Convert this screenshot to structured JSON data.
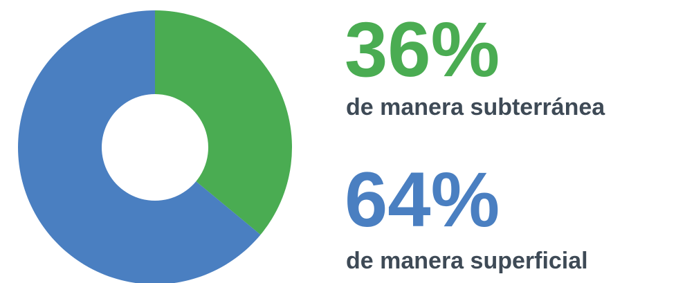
{
  "chart_data": {
    "type": "donut",
    "categories": [
      "de manera subterránea",
      "de manera superficial"
    ],
    "values": [
      36,
      64
    ],
    "value_labels": [
      "36%",
      "64%"
    ],
    "colors": [
      "#4aac52",
      "#4a7fc1"
    ]
  }
}
